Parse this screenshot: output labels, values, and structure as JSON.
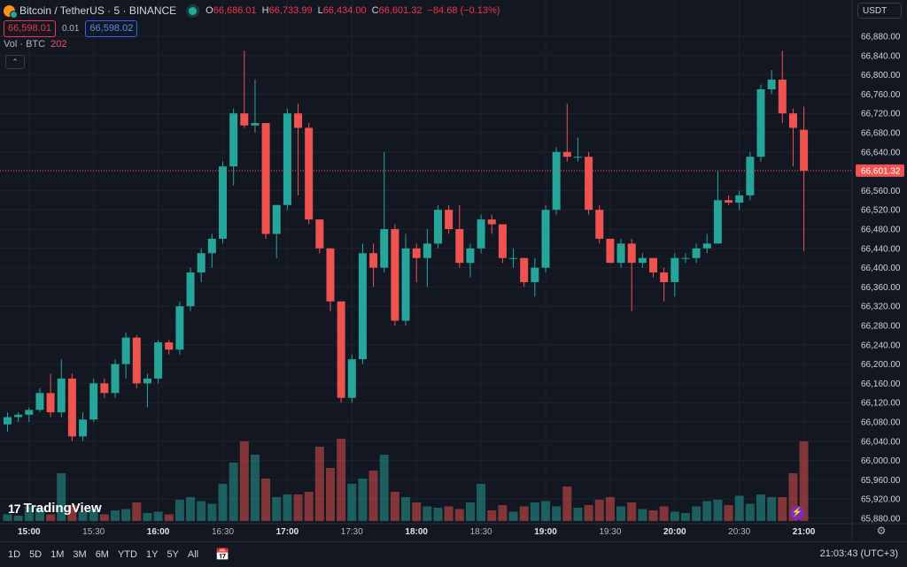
{
  "header": {
    "symbol_title": "Bitcoin / TetherUS · 5 · BINANCE",
    "ohlc": [
      {
        "key": "O",
        "value": "66,686.01"
      },
      {
        "key": "H",
        "value": "66,733.99"
      },
      {
        "key": "L",
        "value": "66,434.00"
      },
      {
        "key": "C",
        "value": "66,601.32"
      }
    ],
    "change": "−84.68 (−0.13%)",
    "sell_price": "66,598.01",
    "spread": "0.01",
    "buy_price": "66,598.02",
    "volume_label": "Vol · BTC",
    "volume_value": "202",
    "currency": "USDT"
  },
  "logo_text": "TradingView",
  "logo_mark": "17",
  "time_ranges": [
    "1D",
    "5D",
    "1M",
    "3M",
    "6M",
    "YTD",
    "1Y",
    "5Y",
    "All"
  ],
  "clock": "21:03:43 (UTC+3)",
  "icons": {
    "live_status": "live-dot-icon",
    "goto_date": "calendar-goto-icon",
    "settings": "gear-icon",
    "alert": "lightning-icon",
    "collapse": "chevron-up-icon"
  },
  "colors": {
    "up": "#26a69a",
    "down": "#ef5350",
    "background": "#131722",
    "last_price_label": "#ef5350"
  },
  "chart_data": {
    "type": "candlestick",
    "interval": "5",
    "y_ticks": [
      65880,
      65920,
      65960,
      66000,
      66040,
      66080,
      66120,
      66160,
      66200,
      66240,
      66280,
      66320,
      66360,
      66400,
      66440,
      66480,
      66520,
      66560,
      66600,
      66640,
      66680,
      66720,
      66760,
      66800,
      66840,
      66880
    ],
    "y_tick_labels": [
      "65,880.00",
      "65,920.00",
      "65,960.00",
      "66,000.00",
      "66,040.00",
      "66,080.00",
      "66,120.00",
      "66,160.00",
      "66,200.00",
      "66,240.00",
      "66,280.00",
      "66,320.00",
      "66,360.00",
      "66,400.00",
      "66,440.00",
      "66,480.00",
      "66,520.00",
      "66,560.00",
      "66,600.00",
      "66,640.00",
      "66,680.00",
      "66,720.00",
      "66,760.00",
      "66,800.00",
      "66,840.00",
      "66,880.00"
    ],
    "last_price": 66601.32,
    "last_price_label": "66,601.32",
    "x_ticks": [
      {
        "index": 2,
        "label": "15:00",
        "bold": true
      },
      {
        "index": 8,
        "label": "15:30",
        "bold": false
      },
      {
        "index": 14,
        "label": "16:00",
        "bold": true
      },
      {
        "index": 20,
        "label": "16:30",
        "bold": false
      },
      {
        "index": 26,
        "label": "17:00",
        "bold": true
      },
      {
        "index": 32,
        "label": "17:30",
        "bold": false
      },
      {
        "index": 38,
        "label": "18:00",
        "bold": true
      },
      {
        "index": 44,
        "label": "18:30",
        "bold": false
      },
      {
        "index": 50,
        "label": "19:00",
        "bold": true
      },
      {
        "index": 56,
        "label": "19:30",
        "bold": false
      },
      {
        "index": 62,
        "label": "20:00",
        "bold": true
      },
      {
        "index": 68,
        "label": "20:30",
        "bold": false
      },
      {
        "index": 74,
        "label": "21:00",
        "bold": true
      }
    ],
    "candles": [
      {
        "o": 66075,
        "h": 66100,
        "l": 66060,
        "c": 66090,
        "v": 0.25
      },
      {
        "o": 66090,
        "h": 66100,
        "l": 66080,
        "c": 66095,
        "v": 0.2
      },
      {
        "o": 66095,
        "h": 66110,
        "l": 66080,
        "c": 66105,
        "v": 0.55
      },
      {
        "o": 66105,
        "h": 66150,
        "l": 66100,
        "c": 66140,
        "v": 0.5
      },
      {
        "o": 66140,
        "h": 66180,
        "l": 66090,
        "c": 66100,
        "v": 0.25
      },
      {
        "o": 66100,
        "h": 66210,
        "l": 66090,
        "c": 66170,
        "v": 1.8
      },
      {
        "o": 66170,
        "h": 66180,
        "l": 66040,
        "c": 66050,
        "v": 0.6
      },
      {
        "o": 66050,
        "h": 66100,
        "l": 66040,
        "c": 66085,
        "v": 0.35
      },
      {
        "o": 66085,
        "h": 66170,
        "l": 66080,
        "c": 66160,
        "v": 0.45
      },
      {
        "o": 66160,
        "h": 66170,
        "l": 66130,
        "c": 66140,
        "v": 0.25
      },
      {
        "o": 66140,
        "h": 66210,
        "l": 66130,
        "c": 66200,
        "v": 0.4
      },
      {
        "o": 66200,
        "h": 66265,
        "l": 66170,
        "c": 66255,
        "v": 0.45
      },
      {
        "o": 66255,
        "h": 66260,
        "l": 66150,
        "c": 66160,
        "v": 0.7
      },
      {
        "o": 66160,
        "h": 66180,
        "l": 66110,
        "c": 66170,
        "v": 0.3
      },
      {
        "o": 66170,
        "h": 66250,
        "l": 66160,
        "c": 66245,
        "v": 0.35
      },
      {
        "o": 66245,
        "h": 66250,
        "l": 66220,
        "c": 66230,
        "v": 0.25
      },
      {
        "o": 66230,
        "h": 66330,
        "l": 66220,
        "c": 66320,
        "v": 0.8
      },
      {
        "o": 66320,
        "h": 66400,
        "l": 66310,
        "c": 66390,
        "v": 0.9
      },
      {
        "o": 66390,
        "h": 66440,
        "l": 66370,
        "c": 66430,
        "v": 0.75
      },
      {
        "o": 66430,
        "h": 66470,
        "l": 66400,
        "c": 66460,
        "v": 0.65
      },
      {
        "o": 66460,
        "h": 66620,
        "l": 66450,
        "c": 66610,
        "v": 1.4
      },
      {
        "o": 66610,
        "h": 66730,
        "l": 66570,
        "c": 66720,
        "v": 2.2
      },
      {
        "o": 66720,
        "h": 66850,
        "l": 66690,
        "c": 66695,
        "v": 3.0
      },
      {
        "o": 66695,
        "h": 66790,
        "l": 66680,
        "c": 66700,
        "v": 2.5
      },
      {
        "o": 66700,
        "h": 66700,
        "l": 66460,
        "c": 66470,
        "v": 1.6
      },
      {
        "o": 66470,
        "h": 66530,
        "l": 66420,
        "c": 66530,
        "v": 0.9
      },
      {
        "o": 66530,
        "h": 66730,
        "l": 66520,
        "c": 66720,
        "v": 1.0
      },
      {
        "o": 66720,
        "h": 66740,
        "l": 66550,
        "c": 66690,
        "v": 1.0
      },
      {
        "o": 66690,
        "h": 66700,
        "l": 66490,
        "c": 66500,
        "v": 1.1
      },
      {
        "o": 66500,
        "h": 66500,
        "l": 66430,
        "c": 66440,
        "v": 2.8
      },
      {
        "o": 66440,
        "h": 66440,
        "l": 66310,
        "c": 66330,
        "v": 2.0
      },
      {
        "o": 66330,
        "h": 66330,
        "l": 66120,
        "c": 66130,
        "v": 3.1
      },
      {
        "o": 66130,
        "h": 66220,
        "l": 66120,
        "c": 66210,
        "v": 1.4
      },
      {
        "o": 66210,
        "h": 66450,
        "l": 66200,
        "c": 66430,
        "v": 1.6
      },
      {
        "o": 66430,
        "h": 66450,
        "l": 66360,
        "c": 66400,
        "v": 1.9
      },
      {
        "o": 66400,
        "h": 66640,
        "l": 66390,
        "c": 66480,
        "v": 2.5
      },
      {
        "o": 66480,
        "h": 66490,
        "l": 66280,
        "c": 66290,
        "v": 1.1
      },
      {
        "o": 66290,
        "h": 66470,
        "l": 66280,
        "c": 66440,
        "v": 0.9
      },
      {
        "o": 66440,
        "h": 66450,
        "l": 66370,
        "c": 66420,
        "v": 0.7
      },
      {
        "o": 66420,
        "h": 66480,
        "l": 66360,
        "c": 66450,
        "v": 0.55
      },
      {
        "o": 66450,
        "h": 66530,
        "l": 66440,
        "c": 66520,
        "v": 0.5
      },
      {
        "o": 66520,
        "h": 66530,
        "l": 66470,
        "c": 66480,
        "v": 0.55
      },
      {
        "o": 66480,
        "h": 66530,
        "l": 66400,
        "c": 66410,
        "v": 0.45
      },
      {
        "o": 66410,
        "h": 66450,
        "l": 66380,
        "c": 66440,
        "v": 0.7
      },
      {
        "o": 66440,
        "h": 66510,
        "l": 66430,
        "c": 66500,
        "v": 1.4
      },
      {
        "o": 66500,
        "h": 66510,
        "l": 66470,
        "c": 66490,
        "v": 0.4
      },
      {
        "o": 66490,
        "h": 66490,
        "l": 66410,
        "c": 66420,
        "v": 0.6
      },
      {
        "o": 66420,
        "h": 66440,
        "l": 66400,
        "c": 66420,
        "v": 0.35
      },
      {
        "o": 66420,
        "h": 66420,
        "l": 66360,
        "c": 66370,
        "v": 0.55
      },
      {
        "o": 66370,
        "h": 66420,
        "l": 66340,
        "c": 66400,
        "v": 0.7
      },
      {
        "o": 66400,
        "h": 66530,
        "l": 66390,
        "c": 66520,
        "v": 0.75
      },
      {
        "o": 66520,
        "h": 66650,
        "l": 66510,
        "c": 66640,
        "v": 0.55
      },
      {
        "o": 66640,
        "h": 66740,
        "l": 66620,
        "c": 66630,
        "v": 1.3
      },
      {
        "o": 66630,
        "h": 66670,
        "l": 66620,
        "c": 66630,
        "v": 0.5
      },
      {
        "o": 66630,
        "h": 66640,
        "l": 66510,
        "c": 66520,
        "v": 0.6
      },
      {
        "o": 66520,
        "h": 66530,
        "l": 66450,
        "c": 66460,
        "v": 0.8
      },
      {
        "o": 66460,
        "h": 66460,
        "l": 66410,
        "c": 66410,
        "v": 0.9
      },
      {
        "o": 66410,
        "h": 66460,
        "l": 66400,
        "c": 66450,
        "v": 0.55
      },
      {
        "o": 66450,
        "h": 66460,
        "l": 66310,
        "c": 66410,
        "v": 0.7
      },
      {
        "o": 66410,
        "h": 66430,
        "l": 66400,
        "c": 66420,
        "v": 0.45
      },
      {
        "o": 66420,
        "h": 66420,
        "l": 66380,
        "c": 66390,
        "v": 0.4
      },
      {
        "o": 66390,
        "h": 66400,
        "l": 66330,
        "c": 66370,
        "v": 0.55
      },
      {
        "o": 66370,
        "h": 66430,
        "l": 66340,
        "c": 66420,
        "v": 0.35
      },
      {
        "o": 66420,
        "h": 66430,
        "l": 66410,
        "c": 66420,
        "v": 0.3
      },
      {
        "o": 66420,
        "h": 66450,
        "l": 66410,
        "c": 66440,
        "v": 0.55
      },
      {
        "o": 66440,
        "h": 66470,
        "l": 66430,
        "c": 66450,
        "v": 0.75
      },
      {
        "o": 66450,
        "h": 66600,
        "l": 66450,
        "c": 66540,
        "v": 0.8
      },
      {
        "o": 66540,
        "h": 66550,
        "l": 66530,
        "c": 66535,
        "v": 0.6
      },
      {
        "o": 66535,
        "h": 66560,
        "l": 66520,
        "c": 66550,
        "v": 0.95
      },
      {
        "o": 66550,
        "h": 66640,
        "l": 66540,
        "c": 66630,
        "v": 0.65
      },
      {
        "o": 66630,
        "h": 66780,
        "l": 66620,
        "c": 66770,
        "v": 1.0
      },
      {
        "o": 66770,
        "h": 66810,
        "l": 66760,
        "c": 66790,
        "v": 0.9
      },
      {
        "o": 66790,
        "h": 66850,
        "l": 66700,
        "c": 66720,
        "v": 0.9
      },
      {
        "o": 66720,
        "h": 66730,
        "l": 66610,
        "c": 66690,
        "v": 1.8
      },
      {
        "o": 66686.01,
        "h": 66733.99,
        "l": 66434,
        "c": 66601.32,
        "v": 3.0
      }
    ]
  }
}
